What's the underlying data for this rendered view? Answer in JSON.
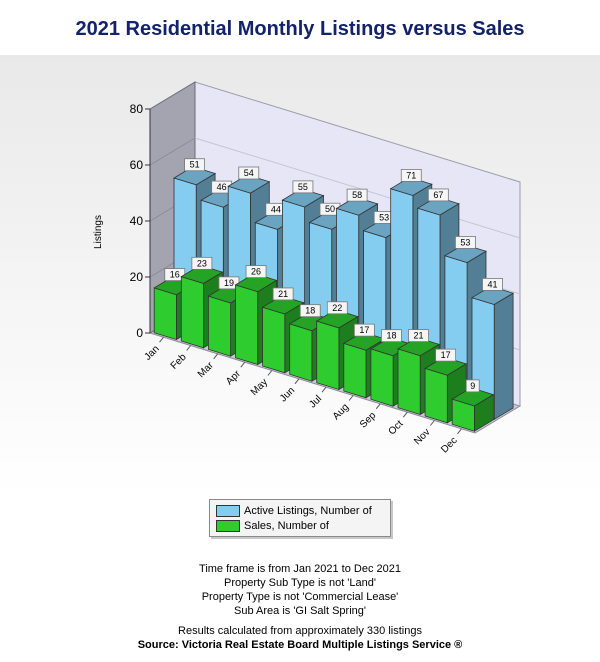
{
  "title": "2021 Residential Monthly Listings versus Sales",
  "chart_data": {
    "type": "bar",
    "ylabel": "Listings",
    "xlabel": "",
    "ylim": [
      0,
      80
    ],
    "y_ticks": [
      "0",
      "20",
      "40",
      "60",
      "80"
    ],
    "categories": [
      "Jan",
      "Feb",
      "Mar",
      "Apr",
      "May",
      "Jun",
      "Jul",
      "Aug",
      "Sep",
      "Oct",
      "Nov",
      "Dec"
    ],
    "series": [
      {
        "name": "Active Listings, Number of",
        "values": [
          51,
          46,
          54,
          44,
          55,
          50,
          58,
          53,
          71,
          67,
          53,
          41
        ],
        "color": "#85cdf0"
      },
      {
        "name": "Sales, Number of",
        "values": [
          16,
          23,
          19,
          26,
          21,
          18,
          22,
          17,
          18,
          21,
          17,
          9
        ],
        "color": "#2ecc2e"
      }
    ],
    "legend_position": "bottom-center",
    "grid": true
  },
  "legend": {
    "active_label": "Active Listings, Number of",
    "sales_label": "Sales, Number of"
  },
  "footnotes": {
    "line1": "Time frame is from Jan 2021 to Dec 2021",
    "line2": "Property Sub Type is not 'Land'",
    "line3": "Property Type is not 'Commercial Lease'",
    "line4": "Sub Area is 'GI Salt Spring'",
    "line5": "Results calculated from approximately 330 listings",
    "source": "Source: Victoria Real Estate Board Multiple Listings Service ®"
  }
}
